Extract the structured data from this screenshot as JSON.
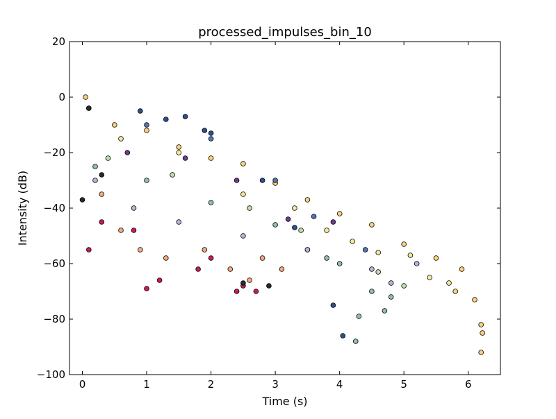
{
  "chart_data": {
    "type": "scatter",
    "title": "processed_impulses_bin_10",
    "xlabel": "Time (s)",
    "ylabel": "Intensity (dB)",
    "xlim": [
      -0.2,
      6.5
    ],
    "ylim": [
      -100,
      20
    ],
    "xticks": [
      0,
      1,
      2,
      3,
      4,
      5,
      6
    ],
    "xtick_labels": [
      "0",
      "1",
      "2",
      "3",
      "4",
      "5",
      "6"
    ],
    "yticks": [
      -100,
      -80,
      -60,
      -40,
      -20,
      0,
      20
    ],
    "ytick_labels": [
      "−100",
      "−80",
      "−60",
      "−40",
      "−20",
      "0",
      "20"
    ],
    "grid": false,
    "legend": "none",
    "marker": "circle",
    "marker_edge_color": "#000000",
    "palette": [
      "#2d4f8f",
      "#4f78b0",
      "#9fbdda",
      "#8fc1a3",
      "#c0e0a8",
      "#f6e89a",
      "#fdd07b",
      "#f4a986",
      "#e57c8f",
      "#c81c56",
      "#6d3d8c",
      "#b9b3d6"
    ],
    "series": [
      {
        "color": "#fdd07b",
        "points": [
          [
            0.05,
            0
          ],
          [
            0.5,
            -10
          ],
          [
            1.0,
            -12
          ],
          [
            1.5,
            -18
          ],
          [
            2.0,
            -22
          ],
          [
            2.5,
            -24
          ],
          [
            3.0,
            -31
          ],
          [
            3.5,
            -37
          ],
          [
            4.0,
            -42
          ],
          [
            4.5,
            -46
          ],
          [
            5.0,
            -53
          ],
          [
            5.5,
            -58
          ],
          [
            5.9,
            -62
          ],
          [
            6.1,
            -73
          ],
          [
            6.2,
            -82
          ],
          [
            6.2,
            -92
          ],
          [
            6.22,
            -85
          ],
          [
            5.8,
            -70
          ]
        ]
      },
      {
        "color": "#2d4f8f",
        "points": [
          [
            0.1,
            -4
          ],
          [
            0.9,
            -5
          ],
          [
            1.3,
            -8
          ],
          [
            1.6,
            -7
          ],
          [
            1.9,
            -12
          ],
          [
            2.0,
            -13
          ],
          [
            2.8,
            -30
          ],
          [
            3.3,
            -47
          ],
          [
            4.05,
            -86
          ],
          [
            3.9,
            -75
          ]
        ]
      },
      {
        "color": "#c81c56",
        "points": [
          [
            0.1,
            -55
          ],
          [
            0.3,
            -45
          ],
          [
            0.8,
            -48
          ],
          [
            1.0,
            -69
          ],
          [
            1.2,
            -66
          ],
          [
            2.0,
            -58
          ],
          [
            2.5,
            -68
          ],
          [
            2.4,
            -70
          ],
          [
            2.7,
            -70
          ],
          [
            1.8,
            -62
          ]
        ]
      },
      {
        "color": "#8fc1a3",
        "points": [
          [
            0.2,
            -25
          ],
          [
            1.0,
            -30
          ],
          [
            2.0,
            -38
          ],
          [
            3.0,
            -46
          ],
          [
            3.5,
            -55
          ],
          [
            4.0,
            -60
          ],
          [
            4.5,
            -70
          ],
          [
            4.7,
            -77
          ],
          [
            4.8,
            -72
          ],
          [
            4.25,
            -88
          ],
          [
            4.3,
            -79
          ],
          [
            3.8,
            -58
          ]
        ]
      },
      {
        "color": "#f4a986",
        "points": [
          [
            0.3,
            -35
          ],
          [
            0.6,
            -48
          ],
          [
            0.9,
            -55
          ],
          [
            1.3,
            -58
          ],
          [
            1.9,
            -55
          ],
          [
            2.3,
            -62
          ],
          [
            2.6,
            -66
          ],
          [
            2.8,
            -58
          ],
          [
            3.1,
            -62
          ]
        ]
      },
      {
        "color": "#b9b3d6",
        "points": [
          [
            0.2,
            -30
          ],
          [
            0.8,
            -40
          ],
          [
            1.5,
            -45
          ],
          [
            2.5,
            -50
          ],
          [
            3.5,
            -55
          ],
          [
            4.5,
            -62
          ],
          [
            4.8,
            -67
          ],
          [
            5.2,
            -60
          ]
        ]
      },
      {
        "color": "#f6e89a",
        "points": [
          [
            0.6,
            -15
          ],
          [
            1.5,
            -20
          ],
          [
            2.5,
            -35
          ],
          [
            3.3,
            -40
          ],
          [
            3.8,
            -48
          ],
          [
            4.2,
            -52
          ],
          [
            4.6,
            -56
          ],
          [
            5.1,
            -57
          ],
          [
            5.4,
            -65
          ],
          [
            5.7,
            -67
          ]
        ]
      },
      {
        "color": "#6d3d8c",
        "points": [
          [
            0.7,
            -20
          ],
          [
            1.6,
            -22
          ],
          [
            2.4,
            -30
          ],
          [
            3.2,
            -44
          ],
          [
            3.9,
            -45
          ]
        ]
      },
      {
        "color": "#4f78b0",
        "points": [
          [
            1.0,
            -10
          ],
          [
            2.0,
            -15
          ],
          [
            3.0,
            -30
          ],
          [
            3.6,
            -43
          ],
          [
            4.4,
            -55
          ]
        ]
      },
      {
        "color": "#c0e0a8",
        "points": [
          [
            0.4,
            -22
          ],
          [
            1.4,
            -28
          ],
          [
            2.6,
            -40
          ],
          [
            3.4,
            -48
          ],
          [
            4.6,
            -63
          ],
          [
            5.0,
            -68
          ]
        ]
      },
      {
        "color": "#2a2a2a",
        "points": [
          [
            0.0,
            -37
          ],
          [
            0.1,
            -4
          ],
          [
            2.5,
            -67
          ],
          [
            2.9,
            -68
          ],
          [
            0.3,
            -28
          ]
        ]
      }
    ]
  }
}
